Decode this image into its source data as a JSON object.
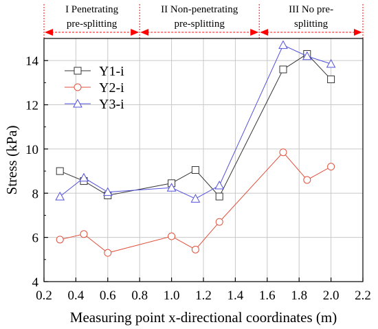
{
  "chart_data": {
    "type": "line",
    "xlabel": "Measuring point x-directional coordinates (m)",
    "ylabel": "Stress (kPa)",
    "xlim": [
      0.2,
      2.2
    ],
    "ylim": [
      4,
      15
    ],
    "x_ticks": [
      "0.2",
      "0.4",
      "0.6",
      "0.8",
      "1.0",
      "1.2",
      "1.4",
      "1.6",
      "1.8",
      "2.0",
      "2.2"
    ],
    "y_ticks": [
      "4",
      "6",
      "8",
      "10",
      "12",
      "14"
    ],
    "grid": true,
    "legend_position": "top-left",
    "zones": [
      {
        "lines": [
          "I Penetrating",
          "pre-splitting"
        ],
        "x_start": 0.2,
        "x_end": 0.8
      },
      {
        "lines": [
          "II Non-penetrating",
          "pre-splitting"
        ],
        "x_start": 0.8,
        "x_end": 1.55
      },
      {
        "lines": [
          "III No pre-",
          "splitting"
        ],
        "x_start": 1.55,
        "x_end": 2.2
      }
    ],
    "series": [
      {
        "name": "Y1-i",
        "marker": "square",
        "color": "#333333",
        "x": [
          0.3,
          0.45,
          0.6,
          1.0,
          1.15,
          1.3,
          1.7,
          1.85,
          2.0
        ],
        "y": [
          9.0,
          8.55,
          7.9,
          8.45,
          9.05,
          7.85,
          13.6,
          14.3,
          13.15
        ]
      },
      {
        "name": "Y2-i",
        "marker": "circle",
        "color": "#e2503c",
        "x": [
          0.3,
          0.45,
          0.6,
          1.0,
          1.15,
          1.3,
          1.7,
          1.85,
          2.0
        ],
        "y": [
          5.9,
          6.15,
          5.3,
          6.05,
          5.45,
          6.7,
          9.85,
          8.6,
          9.2
        ]
      },
      {
        "name": "Y3-i",
        "marker": "triangle",
        "color": "#5050dc",
        "x": [
          0.3,
          0.45,
          0.6,
          1.0,
          1.15,
          1.3,
          1.7,
          1.85,
          2.0
        ],
        "y": [
          7.85,
          8.7,
          8.05,
          8.25,
          7.75,
          8.35,
          14.7,
          14.2,
          13.85
        ]
      }
    ]
  },
  "colors": {
    "zone_arrow": "#ff0000",
    "zone_divider": "#ff0000",
    "grid": "#c8c8c8",
    "axis": "#000000"
  }
}
